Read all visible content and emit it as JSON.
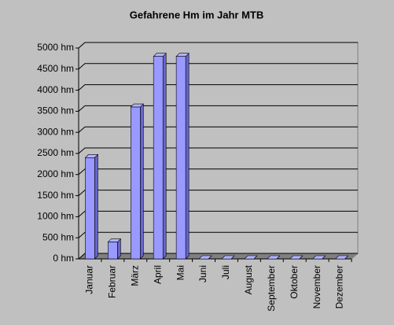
{
  "chart_data": {
    "type": "bar",
    "title": "Gefahrene Hm im Jahr MTB",
    "categories": [
      "Januar",
      "Februar",
      "März",
      "April",
      "Mai",
      "Juni",
      "Juli",
      "August",
      "September",
      "Oktober",
      "November",
      "Dezember"
    ],
    "values": [
      2400,
      400,
      3600,
      4800,
      4800,
      0,
      0,
      0,
      0,
      0,
      0,
      0
    ],
    "color": "#9999ff",
    "ylim": [
      0,
      5000
    ],
    "yticks": [
      {
        "value": 0,
        "label": "0 hm"
      },
      {
        "value": 500,
        "label": "500 hm"
      },
      {
        "value": 1000,
        "label": "1000 hm"
      },
      {
        "value": 1500,
        "label": "1500 hm"
      },
      {
        "value": 2000,
        "label": "2000 hm"
      },
      {
        "value": 2500,
        "label": "2500 hm"
      },
      {
        "value": 3000,
        "label": "3000 hm"
      },
      {
        "value": 3500,
        "label": "3500 hm"
      },
      {
        "value": 4000,
        "label": "4000 hm"
      },
      {
        "value": 4500,
        "label": "4500 hm"
      },
      {
        "value": 5000,
        "label": "5000 hm"
      }
    ],
    "grid": true
  }
}
